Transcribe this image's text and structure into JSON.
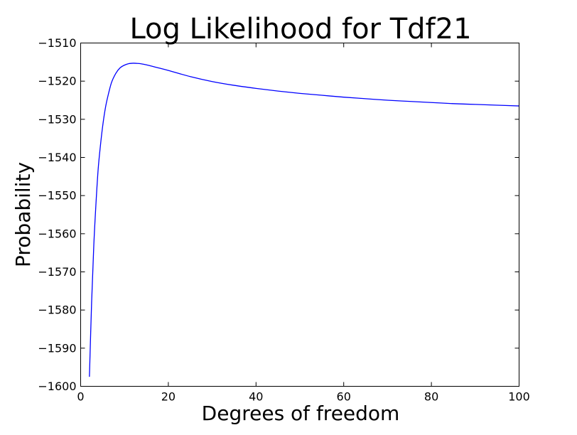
{
  "chart_data": {
    "type": "line",
    "title": "Log Likelihood for Tdf21",
    "xlabel": "Degrees of freedom",
    "ylabel": "Probability",
    "xlim": [
      0,
      100
    ],
    "ylim": [
      -1600,
      -1510
    ],
    "xticks": [
      0,
      20,
      40,
      60,
      80,
      100
    ],
    "xtick_labels": [
      "0",
      "20",
      "40",
      "60",
      "80",
      "100"
    ],
    "yticks": [
      -1600,
      -1590,
      -1580,
      -1570,
      -1560,
      -1550,
      -1540,
      -1530,
      -1520,
      -1510
    ],
    "ytick_labels": [
      "−1600",
      "−1590",
      "−1580",
      "−1570",
      "−1560",
      "−1550",
      "−1540",
      "−1530",
      "−1520",
      "−1510"
    ],
    "grid": false,
    "series": [
      {
        "color": "#0000ff",
        "x": [
          2,
          2.5,
          3,
          3.5,
          4,
          4.5,
          5,
          5.5,
          6,
          7,
          8,
          9,
          10,
          11,
          12,
          13,
          14,
          16,
          18,
          20,
          25,
          30,
          35,
          40,
          45,
          50,
          55,
          60,
          65,
          70,
          75,
          80,
          85,
          90,
          95,
          100
        ],
        "y": [
          -1597.5,
          -1578,
          -1563,
          -1552,
          -1543,
          -1537,
          -1532,
          -1528,
          -1525,
          -1520.5,
          -1518,
          -1516.5,
          -1515.8,
          -1515.4,
          -1515.3,
          -1515.35,
          -1515.5,
          -1516,
          -1516.6,
          -1517.2,
          -1518.8,
          -1520.1,
          -1521.1,
          -1521.9,
          -1522.6,
          -1523.2,
          -1523.7,
          -1524.2,
          -1524.6,
          -1525,
          -1525.3,
          -1525.6,
          -1525.9,
          -1526.1,
          -1526.3,
          -1526.5
        ]
      }
    ]
  }
}
